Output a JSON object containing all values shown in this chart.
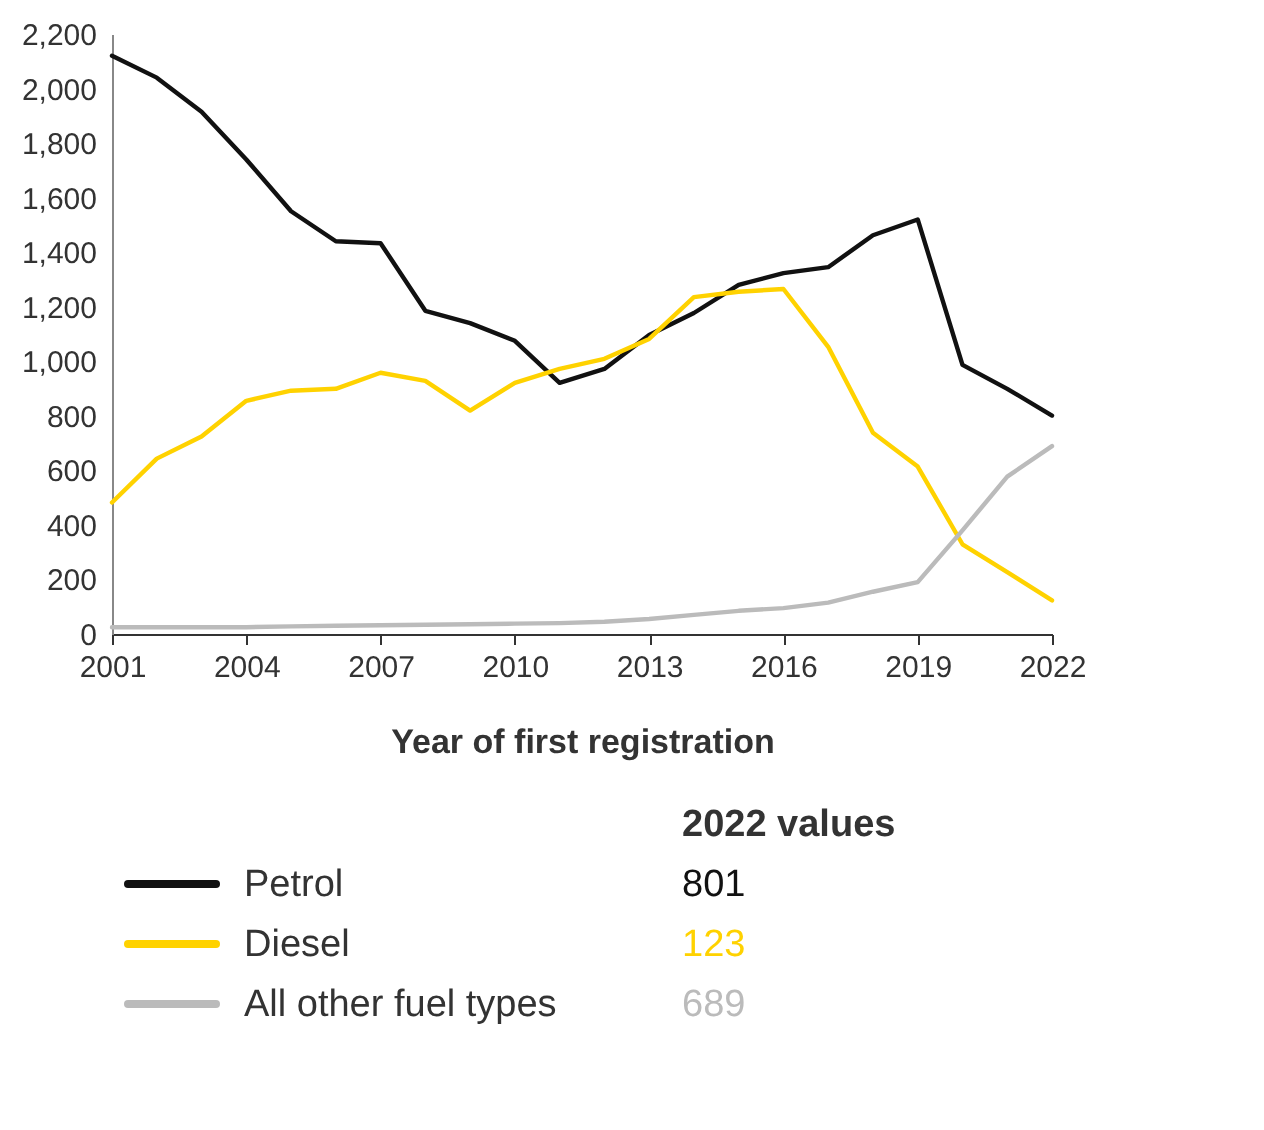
{
  "chart_data": {
    "type": "line",
    "xlabel": "Year of first registration",
    "x": [
      2001,
      2002,
      2003,
      2004,
      2005,
      2006,
      2007,
      2008,
      2009,
      2010,
      2011,
      2012,
      2013,
      2014,
      2015,
      2016,
      2017,
      2018,
      2019,
      2020,
      2021,
      2022
    ],
    "series": [
      {
        "name": "Petrol",
        "color": "#111111",
        "values": [
          2120,
          2040,
          1915,
          1740,
          1550,
          1440,
          1433,
          1185,
          1140,
          1075,
          921,
          972,
          1096,
          1177,
          1280,
          1323,
          1345,
          1462,
          1520,
          987,
          899,
          801
        ]
      },
      {
        "name": "Diesel",
        "color": "#ffd200",
        "values": [
          482,
          643,
          724,
          855,
          892,
          899,
          958,
          928,
          819,
          921,
          972,
          1009,
          1082,
          1235,
          1255,
          1265,
          1053,
          738,
          614,
          329,
          227,
          123
        ]
      },
      {
        "name": "All other fuel types",
        "color": "#bbbbbb",
        "values": [
          25,
          25,
          25,
          25,
          28,
          30,
          32,
          34,
          36,
          38,
          40,
          45,
          55,
          70,
          85,
          95,
          115,
          155,
          190,
          380,
          577,
          689
        ]
      }
    ],
    "xlim": [
      2001,
      2022
    ],
    "xticks": [
      2001,
      2004,
      2007,
      2010,
      2013,
      2016,
      2019,
      2022
    ],
    "ylim": [
      0,
      2200
    ],
    "yticks": [
      0,
      200,
      400,
      600,
      800,
      {
        "value": 1000,
        "label": "1,000"
      },
      {
        "value": 1200,
        "label": "1,200"
      },
      {
        "value": 1400,
        "label": "1,400"
      },
      {
        "value": 1600,
        "label": "1,600"
      },
      {
        "value": 1800,
        "label": "1,800"
      },
      {
        "value": 2000,
        "label": "2,000"
      },
      {
        "value": 2200,
        "label": "2,200"
      }
    ],
    "grid": false,
    "legend": "bottom",
    "marker": "none",
    "line_style": "solid",
    "annotations": [
      "2022 values",
      "801",
      "123",
      "689"
    ]
  }
}
